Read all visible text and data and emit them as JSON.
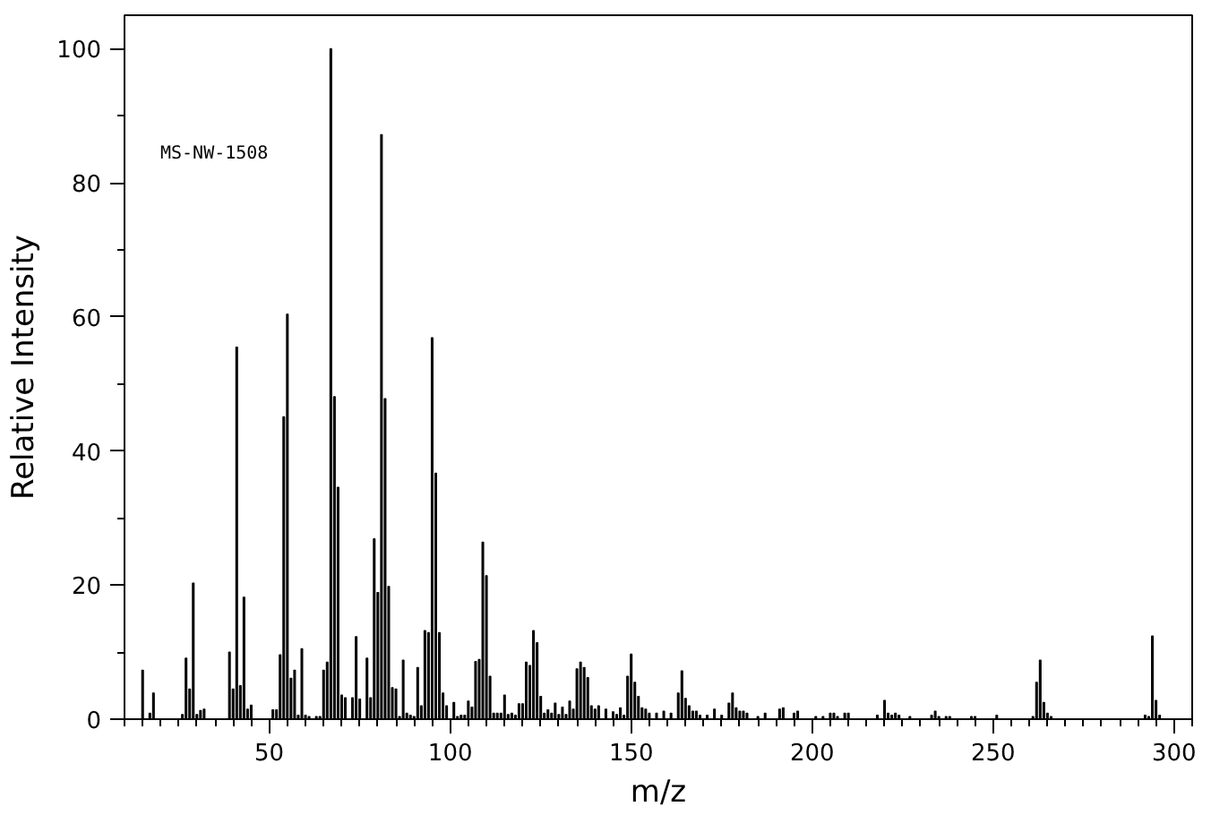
{
  "chart_data": {
    "type": "bar",
    "xlabel": "m/z",
    "ylabel": "Relative Intensity",
    "color": "#000000",
    "annotations": [
      "MS-NW-1508"
    ],
    "x": [
      15,
      17,
      18,
      26,
      27,
      28,
      29,
      30,
      31,
      32,
      39,
      40,
      41,
      42,
      43,
      44,
      45,
      51,
      52,
      53,
      54,
      55,
      56,
      57,
      58,
      59,
      60,
      61,
      63,
      64,
      65,
      66,
      67,
      68,
      69,
      70,
      71,
      73,
      74,
      75,
      77,
      78,
      79,
      80,
      81,
      82,
      83,
      84,
      85,
      86,
      87,
      88,
      89,
      90,
      91,
      92,
      93,
      94,
      95,
      96,
      97,
      98,
      99,
      101,
      102,
      103,
      104,
      105,
      106,
      107,
      108,
      109,
      110,
      111,
      112,
      113,
      114,
      115,
      116,
      117,
      118,
      119,
      120,
      121,
      122,
      123,
      124,
      125,
      126,
      127,
      128,
      129,
      130,
      131,
      132,
      133,
      134,
      135,
      136,
      137,
      138,
      139,
      140,
      141,
      143,
      145,
      146,
      147,
      148,
      149,
      150,
      151,
      152,
      153,
      154,
      155,
      157,
      159,
      161,
      163,
      164,
      165,
      166,
      167,
      168,
      169,
      171,
      173,
      175,
      177,
      178,
      179,
      180,
      181,
      182,
      185,
      187,
      191,
      192,
      195,
      196,
      201,
      203,
      205,
      206,
      207,
      209,
      210,
      218,
      220,
      221,
      222,
      223,
      224,
      227,
      233,
      234,
      235,
      237,
      238,
      244,
      245,
      251,
      261,
      262,
      263,
      264,
      265,
      266,
      292,
      293,
      294,
      295,
      296
    ],
    "values": [
      7.3,
      0.9,
      3.9,
      0.7,
      9.1,
      4.5,
      20.3,
      0.7,
      1.3,
      1.5,
      10.0,
      4.5,
      55.5,
      5.0,
      18.2,
      1.5,
      2.1,
      1.4,
      1.4,
      9.6,
      45.1,
      60.4,
      6.1,
      7.3,
      0.6,
      10.5,
      0.6,
      0.4,
      0.4,
      0.4,
      7.3,
      8.5,
      100,
      48.1,
      34.6,
      3.6,
      3.2,
      3.2,
      12.3,
      3.0,
      9.1,
      3.2,
      26.9,
      18.9,
      87.2,
      47.8,
      19.8,
      4.7,
      4.5,
      0.4,
      8.8,
      0.9,
      0.6,
      0.4,
      7.7,
      2.0,
      13.2,
      12.9,
      56.9,
      36.7,
      12.9,
      3.9,
      2.0,
      2.5,
      0.4,
      0.6,
      0.6,
      2.7,
      1.8,
      8.6,
      8.9,
      26.4,
      21.4,
      6.4,
      0.9,
      0.9,
      0.9,
      3.6,
      0.7,
      0.9,
      0.6,
      2.3,
      2.3,
      8.5,
      8.0,
      13.2,
      11.4,
      3.4,
      0.9,
      1.4,
      0.9,
      2.4,
      0.7,
      1.8,
      0.7,
      2.7,
      1.5,
      7.5,
      8.5,
      7.7,
      6.2,
      2.0,
      1.5,
      2.0,
      1.5,
      1.1,
      0.7,
      1.7,
      0.6,
      6.4,
      9.7,
      5.5,
      3.4,
      1.7,
      1.5,
      0.9,
      0.9,
      1.2,
      0.9,
      3.9,
      7.2,
      3.1,
      2.0,
      1.2,
      1.2,
      0.6,
      0.6,
      1.5,
      0.6,
      2.4,
      3.9,
      1.7,
      1.2,
      1.2,
      0.9,
      0.4,
      0.9,
      1.5,
      1.7,
      0.9,
      1.2,
      0.4,
      0.4,
      0.9,
      0.9,
      0.4,
      0.9,
      0.9,
      0.6,
      2.8,
      0.9,
      0.6,
      0.9,
      0.6,
      0.4,
      0.6,
      1.2,
      0.4,
      0.4,
      0.4,
      0.4,
      0.4,
      0.6,
      0.4,
      5.5,
      8.8,
      2.5,
      0.9,
      0.4,
      0.6,
      0.4,
      12.4,
      2.8,
      0.6
    ],
    "xlim": [
      10,
      305
    ],
    "xticks": [
      50,
      100,
      150,
      200,
      250,
      300,
      {
        "value": 10,
        "label": null
      },
      {
        "value": 15,
        "label": null
      },
      {
        "value": 20,
        "label": null
      },
      {
        "value": 25,
        "label": null
      },
      {
        "value": 30,
        "label": null
      },
      {
        "value": 35,
        "label": null
      },
      {
        "value": 40,
        "label": null
      },
      {
        "value": 45,
        "label": null
      },
      {
        "value": 55,
        "label": null
      },
      {
        "value": 60,
        "label": null
      },
      {
        "value": 65,
        "label": null
      },
      {
        "value": 70,
        "label": null
      },
      {
        "value": 75,
        "label": null
      },
      {
        "value": 80,
        "label": null
      },
      {
        "value": 85,
        "label": null
      },
      {
        "value": 90,
        "label": null
      },
      {
        "value": 95,
        "label": null
      },
      {
        "value": 105,
        "label": null
      },
      {
        "value": 110,
        "label": null
      },
      {
        "value": 115,
        "label": null
      },
      {
        "value": 120,
        "label": null
      },
      {
        "value": 125,
        "label": null
      },
      {
        "value": 130,
        "label": null
      },
      {
        "value": 135,
        "label": null
      },
      {
        "value": 140,
        "label": null
      },
      {
        "value": 145,
        "label": null
      },
      {
        "value": 155,
        "label": null
      },
      {
        "value": 160,
        "label": null
      },
      {
        "value": 165,
        "label": null
      },
      {
        "value": 170,
        "label": null
      },
      {
        "value": 175,
        "label": null
      },
      {
        "value": 180,
        "label": null
      },
      {
        "value": 185,
        "label": null
      },
      {
        "value": 190,
        "label": null
      },
      {
        "value": 195,
        "label": null
      },
      {
        "value": 205,
        "label": null
      },
      {
        "value": 210,
        "label": null
      },
      {
        "value": 215,
        "label": null
      },
      {
        "value": 220,
        "label": null
      },
      {
        "value": 225,
        "label": null
      },
      {
        "value": 230,
        "label": null
      },
      {
        "value": 235,
        "label": null
      },
      {
        "value": 240,
        "label": null
      },
      {
        "value": 245,
        "label": null
      },
      {
        "value": 255,
        "label": null
      },
      {
        "value": 260,
        "label": null
      },
      {
        "value": 265,
        "label": null
      },
      {
        "value": 270,
        "label": null
      },
      {
        "value": 275,
        "label": null
      },
      {
        "value": 280,
        "label": null
      },
      {
        "value": 285,
        "label": null
      },
      {
        "value": 290,
        "label": null
      },
      {
        "value": 295,
        "label": null
      },
      {
        "value": 305,
        "label": null
      }
    ],
    "ylim": [
      0,
      105
    ],
    "yticks": [
      0,
      20,
      40,
      60,
      80,
      100,
      {
        "value": 10,
        "label": null
      },
      {
        "value": 30,
        "label": null
      },
      {
        "value": 50,
        "label": null
      },
      {
        "value": 70,
        "label": null
      },
      {
        "value": 90,
        "label": null
      }
    ],
    "grid": false
  }
}
